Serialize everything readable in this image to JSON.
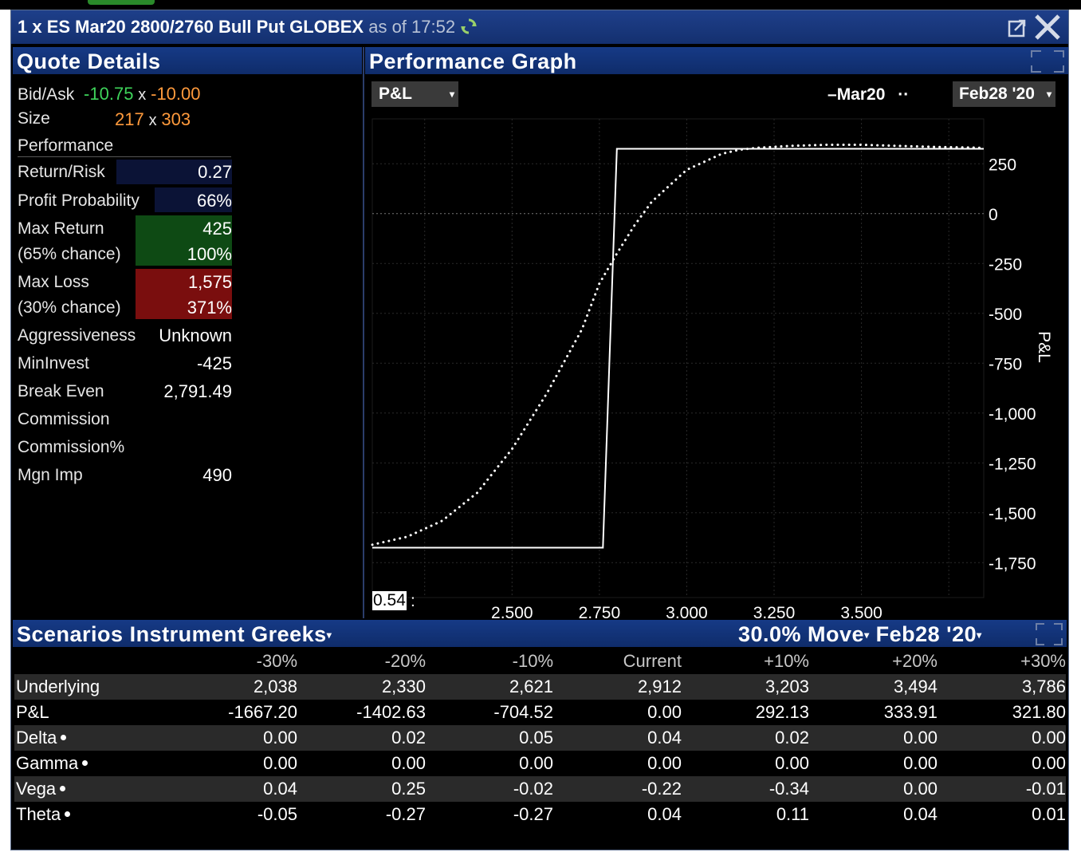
{
  "window": {
    "title": "1 x ES Mar20 2800/2760 Bull Put GLOBEX",
    "as_of": "as of 17:52"
  },
  "quote_details": {
    "header": "Quote Details",
    "bid_ask_label": "Bid/Ask",
    "bid": "-10.75",
    "bid_ask_sep": "x",
    "ask": "-10.00",
    "size_label": "Size",
    "bid_size": "217",
    "size_sep": "x",
    "ask_size": "303",
    "performance_label": "Performance",
    "return_risk_label": "Return/Risk",
    "return_risk": "0.27",
    "profit_probability_label": "Profit Probability",
    "profit_probability": "66%",
    "max_return_label": "Max Return",
    "max_return": "425",
    "max_return_chance_label": "(65% chance)",
    "max_return_pct": "100%",
    "max_loss_label": "Max Loss",
    "max_loss": "1,575",
    "max_loss_chance_label": "(30% chance)",
    "max_loss_pct": "371%",
    "aggressiveness_label": "Aggressiveness",
    "aggressiveness": "Unknown",
    "mininvest_label": "MinInvest",
    "mininvest": "-425",
    "break_even_label": "Break Even",
    "break_even": "2,791.49",
    "commission_label": "Commission",
    "commission_pct_label": "Commission%",
    "mgn_imp_label": "Mgn Imp",
    "mgn_imp": "490"
  },
  "performance_graph": {
    "header": "Performance Graph",
    "metric_select": "P&L",
    "legend_solid": "Mar20",
    "date_select": "Feb28 '20",
    "cursor_value": "0.54",
    "cursor_suffix": ":"
  },
  "chart_data": {
    "type": "line",
    "ylabel": "P&L",
    "x_ticks": [
      "2,500",
      "2,750",
      "3,000",
      "3,250",
      "3,500"
    ],
    "y_ticks": [
      "250",
      "0",
      "-250",
      "-500",
      "-750",
      "-1,000",
      "-1,250",
      "-1,500",
      "-1,750"
    ],
    "xlim": [
      2100,
      3850
    ],
    "ylim": [
      -1925,
      475
    ],
    "grid": true,
    "series": [
      {
        "name": "Mar20",
        "style": "solid",
        "x": [
          2100,
          2760,
          2800,
          3850
        ],
        "y": [
          -1675,
          -1675,
          325,
          325
        ]
      },
      {
        "name": "Feb28 '20",
        "style": "dotted",
        "x": [
          2100,
          2200,
          2300,
          2400,
          2500,
          2600,
          2650,
          2700,
          2750,
          2800,
          2850,
          2900,
          2950,
          3000,
          3050,
          3100,
          3150,
          3200,
          3300,
          3400,
          3500,
          3600,
          3700,
          3850
        ],
        "y": [
          -1660,
          -1620,
          -1540,
          -1400,
          -1180,
          -900,
          -740,
          -580,
          -350,
          -200,
          -60,
          60,
          140,
          220,
          260,
          300,
          320,
          330,
          340,
          345,
          345,
          340,
          335,
          330
        ]
      }
    ]
  },
  "scenarios": {
    "header_left": "Scenarios",
    "header_tab": "Instrument Greeks",
    "move_select": "30.0% Move",
    "date_select": "Feb28 '20",
    "columns": [
      "-30%",
      "-20%",
      "-10%",
      "Current",
      "+10%",
      "+20%",
      "+30%"
    ],
    "rows": [
      {
        "label": "Underlying",
        "values": [
          "2,038",
          "2,330",
          "2,621",
          "2,912",
          "3,203",
          "3,494",
          "3,786"
        ]
      },
      {
        "label": "P&L",
        "values": [
          "-1667.20",
          "-1402.63",
          "-704.52",
          "0.00",
          "292.13",
          "333.91",
          "321.80"
        ]
      },
      {
        "label": "Delta",
        "values": [
          "0.00",
          "0.02",
          "0.05",
          "0.04",
          "0.02",
          "0.00",
          "0.00"
        ]
      },
      {
        "label": "Gamma",
        "values": [
          "0.00",
          "0.00",
          "0.00",
          "0.00",
          "0.00",
          "0.00",
          "0.00"
        ]
      },
      {
        "label": "Vega",
        "values": [
          "0.04",
          "0.25",
          "-0.02",
          "-0.22",
          "-0.34",
          "0.00",
          "-0.01"
        ]
      },
      {
        "label": "Theta",
        "values": [
          "-0.05",
          "-0.27",
          "-0.27",
          "0.04",
          "0.11",
          "0.04",
          "0.01"
        ]
      }
    ]
  }
}
